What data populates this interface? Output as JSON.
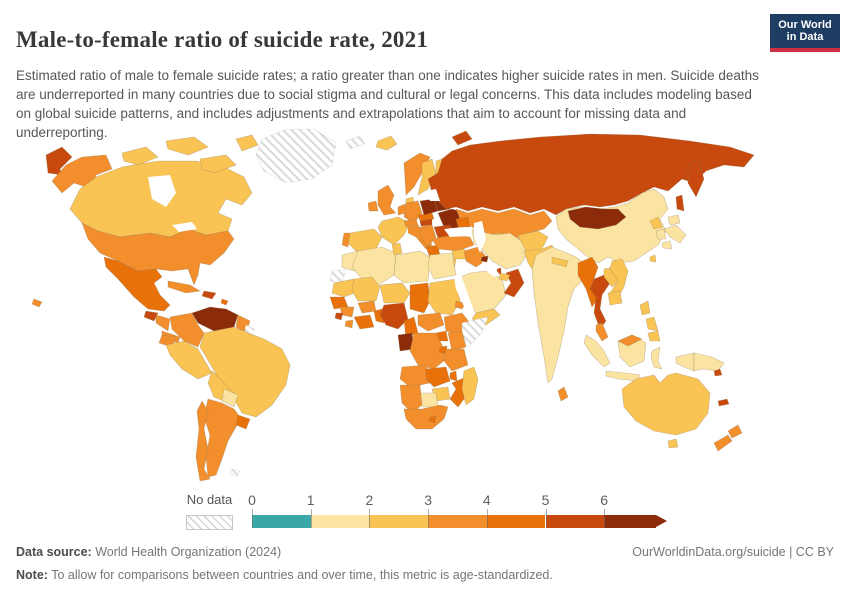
{
  "header": {
    "title": "Male-to-female ratio of suicide rate, 2021",
    "subtitle": "Estimated ratio of male to female suicide rates; a ratio greater than one indicates higher suicide rates in men. Suicide deaths are underreported in many countries due to social stigma and cultural or legal concerns. This data includes modeling based on global suicide patterns, and includes adjustments and extrapolations that aim to account for missing data and underreporting.",
    "logo": {
      "line1": "Our World",
      "line2": "in Data",
      "bg": "#1d3d63",
      "accent": "#ce2e41"
    }
  },
  "legend": {
    "no_data_label": "No data"
  },
  "footer": {
    "source_label": "Data source:",
    "source_text": " World Health Organization (2024)",
    "right_text": "OurWorldinData.org/suicide | CC BY",
    "note_label": "Note:",
    "note_text": " To allow for comparisons between countries and over time, this metric is age-standardized."
  },
  "chart_data": {
    "type": "heatmap",
    "variant": "world-choropleth",
    "title": "Male-to-female ratio of suicide rate, 2021",
    "unit": "ratio of male to female suicide rate",
    "legend_position": "bottom",
    "legend_ticks": [
      "0",
      "1",
      "2",
      "3",
      "4",
      "5",
      "6"
    ],
    "scale_range": [
      0,
      6
    ],
    "open_ended_max": true,
    "bins": [
      {
        "label": "0–1",
        "color": "#3aa7a8"
      },
      {
        "label": "1–2",
        "color": "#fbe3a1"
      },
      {
        "label": "2–3",
        "color": "#f9c453"
      },
      {
        "label": "3–4",
        "color": "#f28e2b"
      },
      {
        "label": "4–5",
        "color": "#e8710a"
      },
      {
        "label": "5–6",
        "color": "#c7490d"
      },
      {
        "label": "6+",
        "color": "#8b2b0a"
      }
    ],
    "no_data": {
      "label": "No data",
      "pattern": "diagonal-hatch"
    },
    "regions": {
      "canada": "2–3",
      "united-states": "3–4",
      "mexico": "4–5",
      "greenland": "no-data",
      "guatemala": "5–6",
      "honduras-nicaragua": "3–4",
      "costa-rica-panama": "3–4",
      "cuba": "3–4",
      "hispaniola": "5–6",
      "caribbean": "4–5",
      "venezuela": "6+",
      "colombia": "3–4",
      "guyana": "3–4",
      "suriname": "no-data",
      "ecuador": "3–4",
      "peru": "2–3",
      "brazil": "2–3",
      "bolivia": "2–3",
      "paraguay": "1–2",
      "uruguay": "4–5",
      "argentina": "3–4",
      "chile": "3–4",
      "falkland-islands": "no-data",
      "iceland": "2–3",
      "svalbard": "no-data",
      "united-kingdom": "3–4",
      "ireland": "3–4",
      "norway": "3–4",
      "sweden": "2–3",
      "finland": "2–3",
      "denmark": "2–3",
      "germany": "3–4",
      "benelux": "3–4",
      "france": "2–3",
      "spain": "2–3",
      "portugal": "3–4",
      "italy": "3–4",
      "alpine-states": "3–4",
      "czechia-slovakia": "4–5",
      "poland": "6+",
      "baltic-states": "6+",
      "belarus": "6+",
      "ukraine": "6+",
      "hungary": "5–6",
      "romania": "5–6",
      "bulgaria": "5–6",
      "balkans": "3–4",
      "greece": "4–5",
      "russia": "5–6",
      "kazakhstan": "3–4",
      "uzbekistan": "2–3",
      "turkmenistan": "1–2",
      "kyrgyzstan-tajikistan": "2–3",
      "caucasus": "4–5",
      "turkey": "3–4",
      "syria": "2–3",
      "iraq": "3–4",
      "israel-jordan": "2–3",
      "saudi-arabia": "1–2",
      "yemen": "2–3",
      "oman": "5–6",
      "uae": "2–3",
      "kuwait": "6+",
      "qatar": "5–6",
      "iran": "1–2",
      "afghanistan": "2–3",
      "pakistan": "2–3",
      "india": "1–2",
      "sri-lanka": "3–4",
      "nepal": "2–3",
      "bangladesh": "2–3",
      "china": "1–2",
      "mongolia": "6+",
      "taiwan": "2–3",
      "north-korea": "2–3",
      "south-korea": "1–2",
      "japan": "1–2",
      "myanmar": "4–5",
      "thailand": "5–6",
      "laos": "2–3",
      "vietnam": "2–3",
      "cambodia": "2–3",
      "malaysia": "3–4",
      "indonesia": "1–2",
      "philippines": "2–3",
      "papua-new-guinea": "1–2",
      "solomon-islands": "5–6",
      "new-caledonia": "5–6",
      "australia": "2–3",
      "new-zealand": "3–4",
      "morocco": "1–2",
      "western-sahara": "no-data",
      "algeria": "1–2",
      "tunisia": "2–3",
      "libya": "1–2",
      "egypt": "1–2",
      "mauritania": "2–3",
      "mali": "2–3",
      "niger": "2–3",
      "chad": "4–5",
      "sudan": "2–3",
      "eritrea": "3–4",
      "senegal": "4–5",
      "sierra-leone": "5–6",
      "guinea": "3–4",
      "liberia": "3–4",
      "cote-divoire-ghana": "4–5",
      "burkina-faso": "3–4",
      "benin-togo": "4–5",
      "nigeria": "5–6",
      "cameroon": "4–5",
      "central-african-republic": "3–4",
      "ethiopia": "3–4",
      "somalia": "no-data",
      "uganda": "4–5",
      "kenya": "3–4",
      "gabon-congo": "6+",
      "dr-congo": "3–4",
      "rwanda-burundi": "4–5",
      "tanzania": "3–4",
      "angola": "3–4",
      "zambia": "4–5",
      "malawi": "4–5",
      "mozambique": "4–5",
      "zimbabwe": "2–3",
      "botswana": "1–2",
      "namibia": "3–4",
      "south-africa": "3–4",
      "lesotho": "4–5",
      "madagascar": "2–3"
    }
  }
}
